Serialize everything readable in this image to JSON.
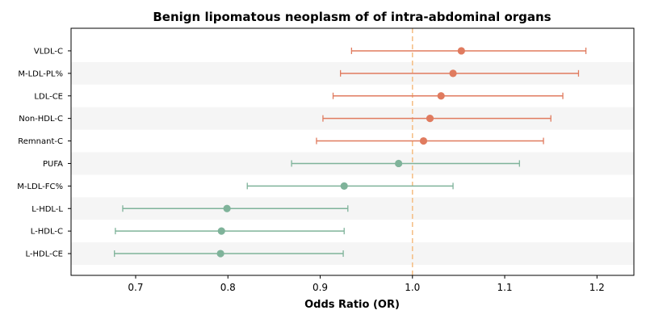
{
  "chart_data": {
    "type": "forest",
    "title": "Benign lipomatous neoplasm of  of intra-abdominal organs",
    "xlabel": "Odds Ratio (OR)",
    "xlim": [
      0.63,
      1.24
    ],
    "xticks": [
      0.7,
      0.8,
      0.9,
      1.0,
      1.1,
      1.2
    ],
    "xtick_labels": [
      "0.7",
      "0.8",
      "0.9",
      "1.0",
      "1.1",
      "1.2"
    ],
    "reference_line": 1.0,
    "colors": {
      "above": "#E07B5F",
      "below": "#7FB39A",
      "reference": "#F5C088",
      "band": "#F5F5F5"
    },
    "rows": [
      {
        "label": "VLDL-C",
        "or": 1.053,
        "lower": 0.934,
        "upper": 1.188,
        "group": "above"
      },
      {
        "label": "M-LDL-PL%",
        "or": 1.044,
        "lower": 0.922,
        "upper": 1.18,
        "group": "above"
      },
      {
        "label": "LDL-CE",
        "or": 1.031,
        "lower": 0.914,
        "upper": 1.163,
        "group": "above"
      },
      {
        "label": "Non-HDL-C",
        "or": 1.019,
        "lower": 0.903,
        "upper": 1.15,
        "group": "above"
      },
      {
        "label": "Remnant-C",
        "or": 1.012,
        "lower": 0.896,
        "upper": 1.142,
        "group": "above"
      },
      {
        "label": "PUFA",
        "or": 0.985,
        "lower": 0.869,
        "upper": 1.116,
        "group": "below"
      },
      {
        "label": "M-LDL-FC%",
        "or": 0.926,
        "lower": 0.821,
        "upper": 1.044,
        "group": "below"
      },
      {
        "label": "L-HDL-L",
        "or": 0.799,
        "lower": 0.686,
        "upper": 0.93,
        "group": "below"
      },
      {
        "label": "L-HDL-C",
        "or": 0.793,
        "lower": 0.678,
        "upper": 0.926,
        "group": "below"
      },
      {
        "label": "L-HDL-CE",
        "or": 0.792,
        "lower": 0.677,
        "upper": 0.925,
        "group": "below"
      }
    ]
  }
}
